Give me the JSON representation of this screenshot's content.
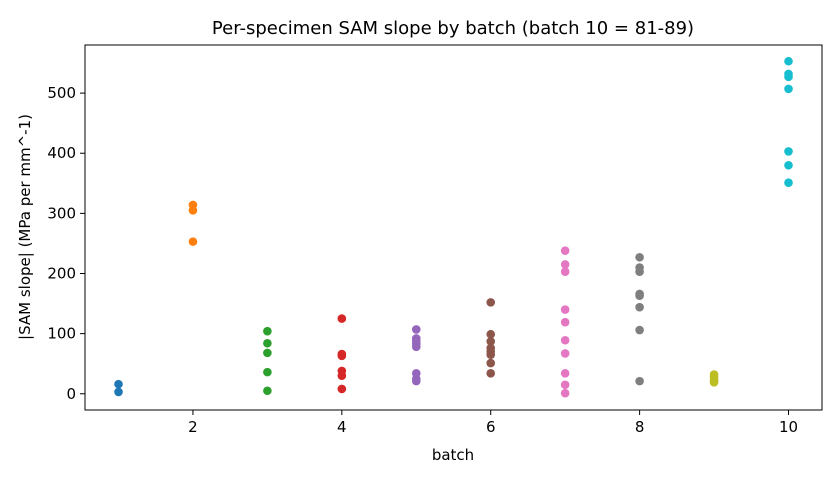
{
  "chart_data": {
    "type": "scatter",
    "title": "Per-specimen SAM slope by batch (batch 10 = 81-89)",
    "xlabel": "batch",
    "ylabel": "|SAM slope|  (MPa per mm^-1)",
    "xlim": [
      0.55,
      10.45
    ],
    "ylim": [
      -27,
      580
    ],
    "xticks": [
      2,
      4,
      6,
      8,
      10
    ],
    "yticks": [
      0,
      100,
      200,
      300,
      400,
      500
    ],
    "grid": false,
    "legend": "none",
    "series": [
      {
        "x": 1,
        "color": "#1f77b4",
        "values": [
          16,
          3
        ]
      },
      {
        "x": 2,
        "color": "#ff7f0e",
        "values": [
          314,
          305,
          253
        ]
      },
      {
        "x": 3,
        "color": "#2ca02c",
        "values": [
          104,
          84,
          68,
          36,
          5
        ]
      },
      {
        "x": 4,
        "color": "#d62728",
        "values": [
          125,
          66,
          63,
          38,
          30,
          8
        ]
      },
      {
        "x": 5,
        "color": "#9467bd",
        "values": [
          107,
          92,
          88,
          83,
          78,
          34,
          25,
          21
        ]
      },
      {
        "x": 6,
        "color": "#8c564b",
        "values": [
          152,
          99,
          87,
          76,
          70,
          65,
          51,
          34
        ]
      },
      {
        "x": 7,
        "color": "#e377c2",
        "values": [
          238,
          215,
          203,
          140,
          119,
          89,
          67,
          34,
          15,
          1
        ]
      },
      {
        "x": 8,
        "color": "#7f7f7f",
        "values": [
          227,
          210,
          203,
          166,
          163,
          144,
          106,
          21
        ]
      },
      {
        "x": 9,
        "color": "#bcbd22",
        "values": [
          32,
          28,
          24,
          21,
          19
        ]
      },
      {
        "x": 10,
        "color": "#17becf",
        "values": [
          553,
          532,
          527,
          507,
          403,
          380,
          351
        ]
      }
    ]
  }
}
